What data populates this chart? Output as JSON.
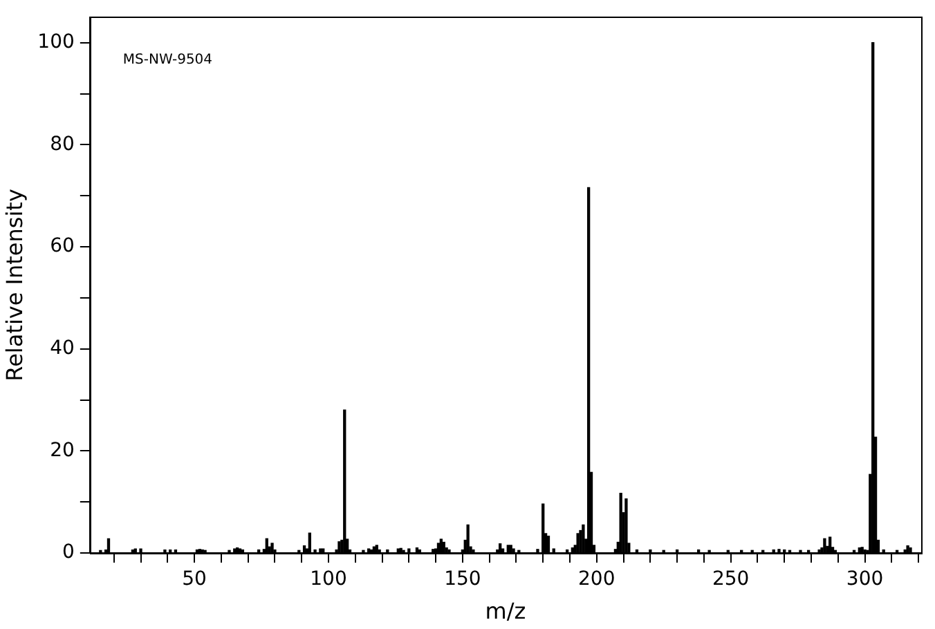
{
  "chart_data": {
    "type": "bar",
    "xlabel": "m/z",
    "ylabel": "Relative Intensity",
    "annotations": [
      "MS-NW-9504"
    ],
    "x": [
      15,
      17,
      18,
      27,
      28,
      30,
      39,
      41,
      43,
      51,
      52,
      53,
      54,
      63,
      65,
      66,
      67,
      68,
      74,
      76,
      77,
      78,
      79,
      80,
      89,
      91,
      92,
      93,
      95,
      97,
      98,
      103,
      104,
      105,
      106,
      107,
      108,
      113,
      115,
      116,
      117,
      118,
      119,
      122,
      126,
      127,
      128,
      130,
      133,
      134,
      139,
      140,
      141,
      142,
      143,
      144,
      145,
      150,
      151,
      152,
      153,
      154,
      163,
      164,
      165,
      167,
      168,
      169,
      171,
      178,
      180,
      181,
      182,
      184,
      189,
      191,
      192,
      193,
      194,
      195,
      196,
      197,
      198,
      199,
      207,
      208,
      209,
      210,
      211,
      212,
      215,
      220,
      225,
      230,
      238,
      242,
      249,
      254,
      258,
      262,
      266,
      268,
      270,
      272,
      276,
      279,
      283,
      284,
      285,
      286,
      287,
      288,
      289,
      296,
      298,
      299,
      300,
      301,
      302,
      303,
      304,
      305,
      307,
      312,
      315,
      316,
      317
    ],
    "values": [
      0.5,
      0.6,
      2.8,
      0.6,
      0.8,
      0.8,
      0.6,
      0.6,
      0.6,
      0.6,
      0.7,
      0.6,
      0.5,
      0.5,
      0.8,
      1.0,
      0.8,
      0.6,
      0.6,
      0.7,
      2.8,
      1.2,
      1.9,
      0.6,
      0.5,
      1.4,
      0.8,
      3.9,
      0.6,
      0.8,
      0.8,
      0.6,
      2.2,
      2.5,
      28,
      2.7,
      0.6,
      0.5,
      0.8,
      0.6,
      1.2,
      1.5,
      0.6,
      0.6,
      0.8,
      0.9,
      0.5,
      0.8,
      1.0,
      0.6,
      0.7,
      0.8,
      1.9,
      2.7,
      2.1,
      1.0,
      0.6,
      0.6,
      2.5,
      5.5,
      1.2,
      0.6,
      0.6,
      1.8,
      0.8,
      1.5,
      1.5,
      0.8,
      0.5,
      0.7,
      9.6,
      3.8,
      3.3,
      0.8,
      0.6,
      1.0,
      1.5,
      3.8,
      4.4,
      5.5,
      2.7,
      71.6,
      15.8,
      1.5,
      0.7,
      2.1,
      11.7,
      7.9,
      10.6,
      1.9,
      0.6,
      0.6,
      0.5,
      0.6,
      0.6,
      0.5,
      0.5,
      0.5,
      0.5,
      0.5,
      0.6,
      0.7,
      0.6,
      0.5,
      0.5,
      0.5,
      0.6,
      1.0,
      2.8,
      1.3,
      3.1,
      1.1,
      0.5,
      0.5,
      1.0,
      1.1,
      0.6,
      0.5,
      15.4,
      100,
      22.7,
      2.5,
      0.6,
      0.5,
      0.6,
      1.4,
      1.0
    ],
    "color": "#000000",
    "xlim": [
      11,
      321
    ],
    "ylim": [
      0,
      105
    ],
    "xticks": [
      {
        "value": 20,
        "label": null
      },
      {
        "value": 30,
        "label": null
      },
      {
        "value": 40,
        "label": null
      },
      50,
      {
        "value": 60,
        "label": null
      },
      {
        "value": 70,
        "label": null
      },
      {
        "value": 80,
        "label": null
      },
      {
        "value": 90,
        "label": null
      },
      100,
      {
        "value": 110,
        "label": null
      },
      {
        "value": 120,
        "label": null
      },
      {
        "value": 130,
        "label": null
      },
      {
        "value": 140,
        "label": null
      },
      150,
      {
        "value": 160,
        "label": null
      },
      {
        "value": 170,
        "label": null
      },
      {
        "value": 180,
        "label": null
      },
      {
        "value": 190,
        "label": null
      },
      200,
      {
        "value": 210,
        "label": null
      },
      {
        "value": 220,
        "label": null
      },
      {
        "value": 230,
        "label": null
      },
      {
        "value": 240,
        "label": null
      },
      250,
      {
        "value": 260,
        "label": null
      },
      {
        "value": 270,
        "label": null
      },
      {
        "value": 280,
        "label": null
      },
      {
        "value": 290,
        "label": null
      },
      300,
      {
        "value": 310,
        "label": null
      },
      {
        "value": 320,
        "label": null
      }
    ],
    "yticks": [
      0,
      {
        "value": 10,
        "label": null
      },
      20,
      {
        "value": 30,
        "label": null
      },
      40,
      {
        "value": 50,
        "label": null
      },
      60,
      {
        "value": 70,
        "label": null
      },
      80,
      {
        "value": 90,
        "label": null
      },
      100
    ],
    "grid": false,
    "legend": false
  }
}
